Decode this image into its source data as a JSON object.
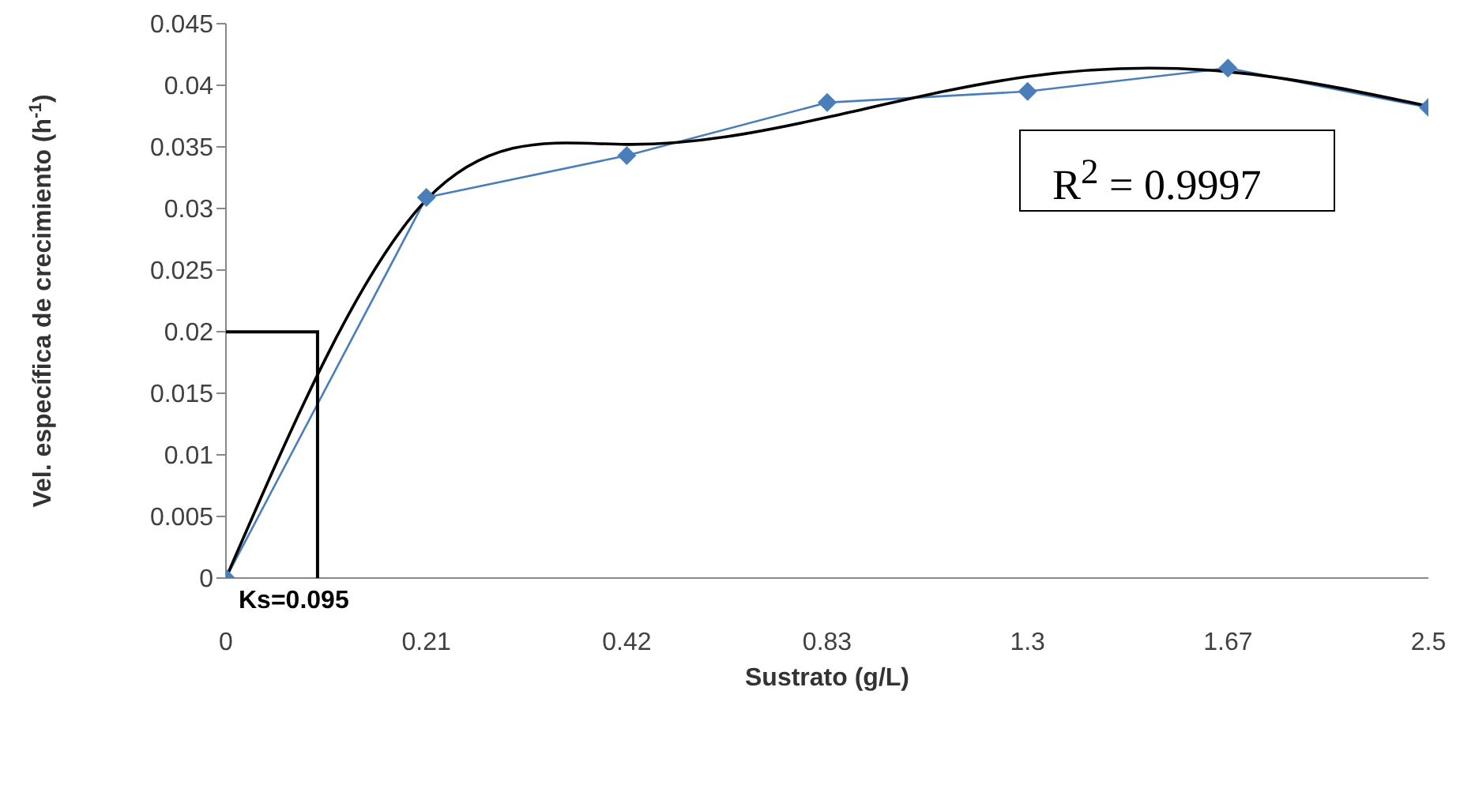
{
  "chart_data": {
    "type": "line",
    "xlabel": "Sustrato (g/L)",
    "ylabel": "Vel. específica de crecimiento (h$^{-1}$)",
    "categories": [
      "0",
      "0.21",
      "0.42",
      "0.83",
      "1.3",
      "1.67",
      "2.5"
    ],
    "series": [
      {
        "color": "#4a7ebb",
        "marker": "diamond",
        "values": [
          0,
          0.0309,
          0.0343,
          0.0386,
          0.0395,
          0.0414,
          0.0382
        ]
      },
      {
        "color": "#000000",
        "marker": "none",
        "values": [
          0,
          0.0307,
          0.0352,
          0.0374,
          0.0407,
          0.0411,
          0.0383
        ]
      }
    ],
    "ylim": [
      0,
      0.045
    ],
    "yticks": [
      0,
      0.005,
      0.01,
      0.015,
      0.02,
      0.025,
      0.03,
      0.035,
      0.04,
      0.045
    ],
    "annotations": [
      "Ks=0.095",
      "R$^{2}$ = 0.9997"
    ],
    "grid": false,
    "legend": false
  }
}
